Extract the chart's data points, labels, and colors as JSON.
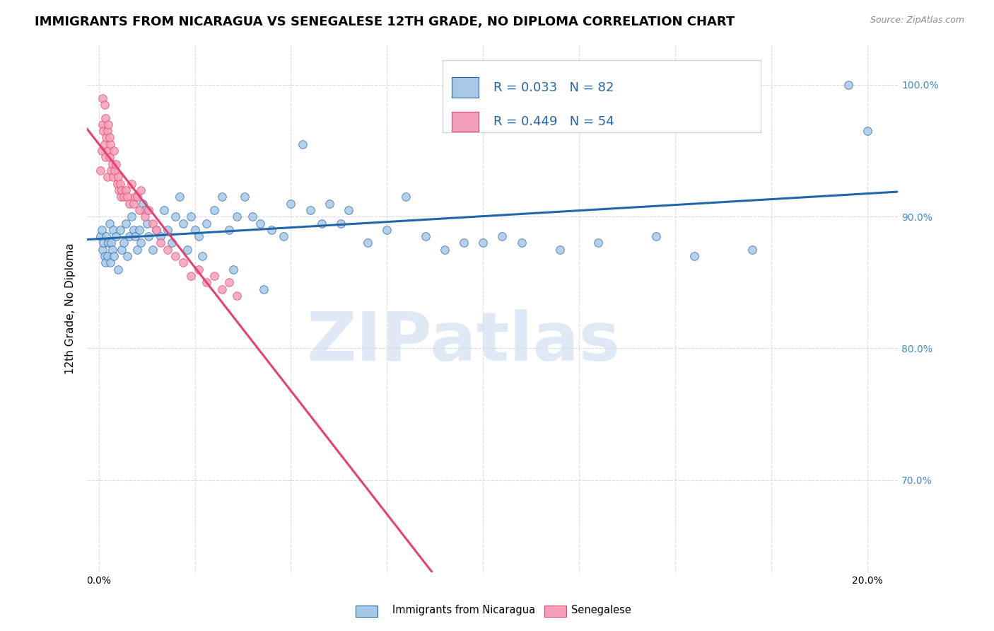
{
  "title": "IMMIGRANTS FROM NICARAGUA VS SENEGALESE 12TH GRADE, NO DIPLOMA CORRELATION CHART",
  "source": "Source: ZipAtlas.com",
  "ylabel": "12th Grade, No Diploma",
  "x_tick_labels_show": [
    "0.0%",
    "20.0%"
  ],
  "x_tick_positions": [
    0.0,
    2.5,
    5.0,
    7.5,
    10.0,
    12.5,
    15.0,
    17.5,
    20.0
  ],
  "x_tick_label_positions": [
    0.0,
    20.0
  ],
  "y_tick_labels": [
    "70.0%",
    "80.0%",
    "90.0%",
    "100.0%"
  ],
  "y_tick_positions": [
    70.0,
    80.0,
    90.0,
    100.0
  ],
  "xlim": [
    -0.3,
    20.8
  ],
  "ylim": [
    63.0,
    103.0
  ],
  "legend_labels": [
    "Immigrants from Nicaragua",
    "Senegalese"
  ],
  "R_nicaragua": 0.033,
  "N_nicaragua": 82,
  "R_senegalese": 0.449,
  "N_senegalese": 54,
  "color_nicaragua": "#a8c8e8",
  "color_senegalese": "#f4a0b8",
  "color_line_nicaragua": "#2266aa",
  "color_line_senegalese": "#e84070",
  "legend_R_color": "#2266aa",
  "watermark_color": "#c5d8ee",
  "watermark_text": "ZIPatlas",
  "background_color": "#ffffff",
  "grid_color": "#d8d8e8",
  "right_label_color": "#4488cc",
  "title_fontsize": 13,
  "axis_label_fontsize": 11,
  "tick_fontsize": 10,
  "legend_fontsize": 13,
  "nicaragua_x": [
    0.05,
    0.08,
    0.1,
    0.12,
    0.15,
    0.18,
    0.2,
    0.22,
    0.25,
    0.28,
    0.3,
    0.32,
    0.35,
    0.38,
    0.4,
    0.45,
    0.5,
    0.55,
    0.6,
    0.65,
    0.7,
    0.75,
    0.8,
    0.85,
    0.9,
    0.95,
    1.0,
    1.05,
    1.1,
    1.15,
    1.2,
    1.25,
    1.3,
    1.4,
    1.5,
    1.6,
    1.7,
    1.8,
    1.9,
    2.0,
    2.1,
    2.2,
    2.3,
    2.4,
    2.5,
    2.6,
    2.7,
    2.8,
    3.0,
    3.2,
    3.4,
    3.6,
    3.8,
    4.0,
    4.2,
    4.5,
    4.8,
    5.0,
    5.3,
    5.5,
    5.8,
    6.0,
    6.3,
    6.5,
    7.0,
    7.5,
    8.0,
    8.5,
    9.0,
    9.5,
    10.0,
    10.5,
    11.0,
    12.0,
    13.0,
    14.5,
    15.5,
    17.0,
    19.5,
    20.0,
    3.5,
    4.3
  ],
  "nicaragua_y": [
    88.5,
    89.0,
    87.5,
    88.0,
    87.0,
    86.5,
    88.5,
    87.0,
    88.0,
    89.5,
    86.5,
    88.0,
    87.5,
    89.0,
    87.0,
    88.5,
    86.0,
    89.0,
    87.5,
    88.0,
    89.5,
    87.0,
    88.5,
    90.0,
    89.0,
    88.5,
    87.5,
    89.0,
    88.0,
    91.0,
    90.5,
    89.5,
    88.5,
    87.5,
    89.0,
    88.5,
    90.5,
    89.0,
    88.0,
    90.0,
    91.5,
    89.5,
    87.5,
    90.0,
    89.0,
    88.5,
    87.0,
    89.5,
    90.5,
    91.5,
    89.0,
    90.0,
    91.5,
    90.0,
    89.5,
    89.0,
    88.5,
    91.0,
    95.5,
    90.5,
    89.5,
    91.0,
    89.5,
    90.5,
    88.0,
    89.0,
    91.5,
    88.5,
    87.5,
    88.0,
    88.0,
    88.5,
    88.0,
    87.5,
    88.0,
    88.5,
    87.0,
    87.5,
    100.0,
    96.5,
    86.0,
    84.5
  ],
  "senegalese_x": [
    0.05,
    0.08,
    0.1,
    0.12,
    0.15,
    0.18,
    0.2,
    0.22,
    0.25,
    0.28,
    0.3,
    0.32,
    0.35,
    0.38,
    0.4,
    0.42,
    0.45,
    0.48,
    0.5,
    0.52,
    0.55,
    0.58,
    0.6,
    0.65,
    0.7,
    0.75,
    0.8,
    0.85,
    0.9,
    0.95,
    1.0,
    1.05,
    1.1,
    1.2,
    1.3,
    1.4,
    1.5,
    1.6,
    1.8,
    2.0,
    2.2,
    2.4,
    2.6,
    2.8,
    3.0,
    3.2,
    3.4,
    3.6,
    0.1,
    0.15,
    0.18,
    0.22,
    0.25,
    0.28
  ],
  "senegalese_y": [
    93.5,
    95.0,
    97.0,
    96.5,
    95.5,
    94.5,
    96.0,
    93.0,
    95.0,
    94.5,
    95.5,
    93.5,
    94.0,
    93.0,
    95.0,
    93.5,
    94.0,
    92.5,
    93.0,
    92.0,
    92.5,
    91.5,
    92.0,
    91.5,
    92.0,
    91.5,
    91.0,
    92.5,
    91.0,
    91.5,
    91.5,
    90.5,
    92.0,
    90.0,
    90.5,
    89.5,
    89.0,
    88.0,
    87.5,
    87.0,
    86.5,
    85.5,
    86.0,
    85.0,
    85.5,
    84.5,
    85.0,
    84.0,
    99.0,
    98.5,
    97.5,
    96.5,
    97.0,
    96.0
  ],
  "nic_reg_y0": 88.3,
  "nic_reg_y1": 88.9,
  "sen_reg_y0": 86.5,
  "sen_reg_y1": 96.5
}
